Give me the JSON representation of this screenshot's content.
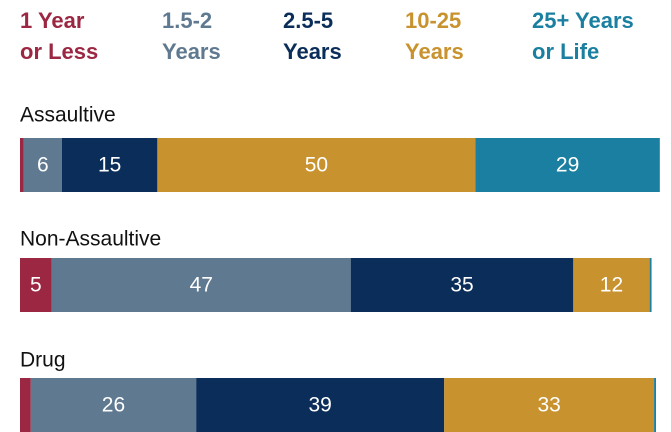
{
  "chart_data": {
    "type": "stacked-bar-horizontal",
    "categories": [
      "Assaultive",
      "Non-Assaultive",
      "Drug"
    ],
    "series": [
      {
        "name": "1 Year\nor Less",
        "color": "#9b2743",
        "values": [
          0.6,
          5,
          1.7
        ]
      },
      {
        "name": "1.5-2\nYears",
        "color": "#5f7990",
        "values": [
          6,
          47,
          26
        ]
      },
      {
        "name": "2.5-5\nYears",
        "color": "#0b2d59",
        "values": [
          15,
          35,
          39
        ]
      },
      {
        "name": "10-25\nYears",
        "color": "#c8922f",
        "values": [
          50,
          12,
          33
        ]
      },
      {
        "name": "25+ Years\nor Life",
        "color": "#1a7fa0",
        "values": [
          29,
          0.3,
          0.3
        ]
      }
    ],
    "xlim": [
      0,
      100
    ]
  }
}
